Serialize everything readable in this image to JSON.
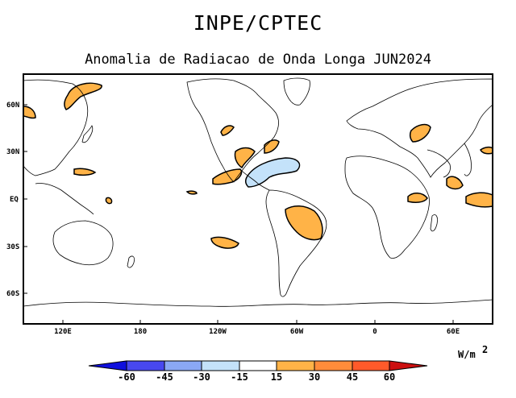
{
  "header": {
    "supertitle": "INPE/CPTEC",
    "title": "Anomalia de Radiacao de Onda Longa JUN2024"
  },
  "map": {
    "lat_labels": [
      "60N",
      "30N",
      "EQ",
      "30S",
      "60S"
    ],
    "lon_labels": [
      "120E",
      "180",
      "120W",
      "60W",
      "0",
      "60E"
    ]
  },
  "colorbar": {
    "unit": "W/m",
    "unit_exponent": "2",
    "tick_labels": [
      "-60",
      "-45",
      "-30",
      "-15",
      "15",
      "30",
      "45",
      "60"
    ],
    "colors": [
      "#1010dd",
      "#4848f0",
      "#8aa8f5",
      "#c4e2fa",
      "#ffffff",
      "#ffb347",
      "#ff8c3a",
      "#ff5a2a",
      "#cc1010"
    ]
  },
  "anomaly_colors": {
    "positive": "#ffb347",
    "negative": "#c4e2fa",
    "outline": "#000000"
  }
}
